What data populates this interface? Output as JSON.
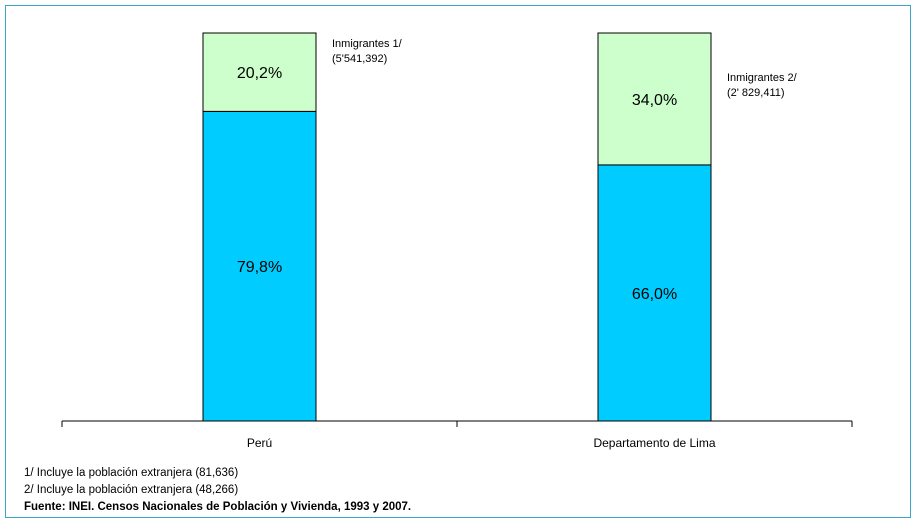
{
  "chart_data": {
    "type": "bar",
    "stacked": true,
    "categories": [
      "Perú",
      "Departamento de Lima"
    ],
    "series": [
      {
        "values": [
          79.8,
          66.0
        ],
        "labels": [
          "79,8%",
          "66,0%"
        ],
        "color": "#00ccff"
      },
      {
        "values": [
          20.2,
          34.0
        ],
        "labels": [
          "20,2%",
          "34,0%"
        ],
        "color": "#ccffcc"
      }
    ],
    "annotations": [
      {
        "lines": [
          "Inmigrantes 1/",
          "(5'541,392)"
        ]
      },
      {
        "lines": [
          "Inmigrantes 2/",
          "(2' 829,411)"
        ]
      }
    ],
    "ylim": [
      0,
      100
    ],
    "grid": false,
    "title": "",
    "xlabel": "",
    "ylabel": ""
  },
  "notes": {
    "note1": "1/ Incluye la población extranjera (81,636)",
    "note2": "2/ Incluye la población extranjera (48,266)",
    "source": "Fuente: INEI. Censos Nacionales de Población y Vivienda, 1993 y 2007."
  },
  "colors": {
    "frame": "#3aa7c9",
    "outline": "#000000"
  }
}
